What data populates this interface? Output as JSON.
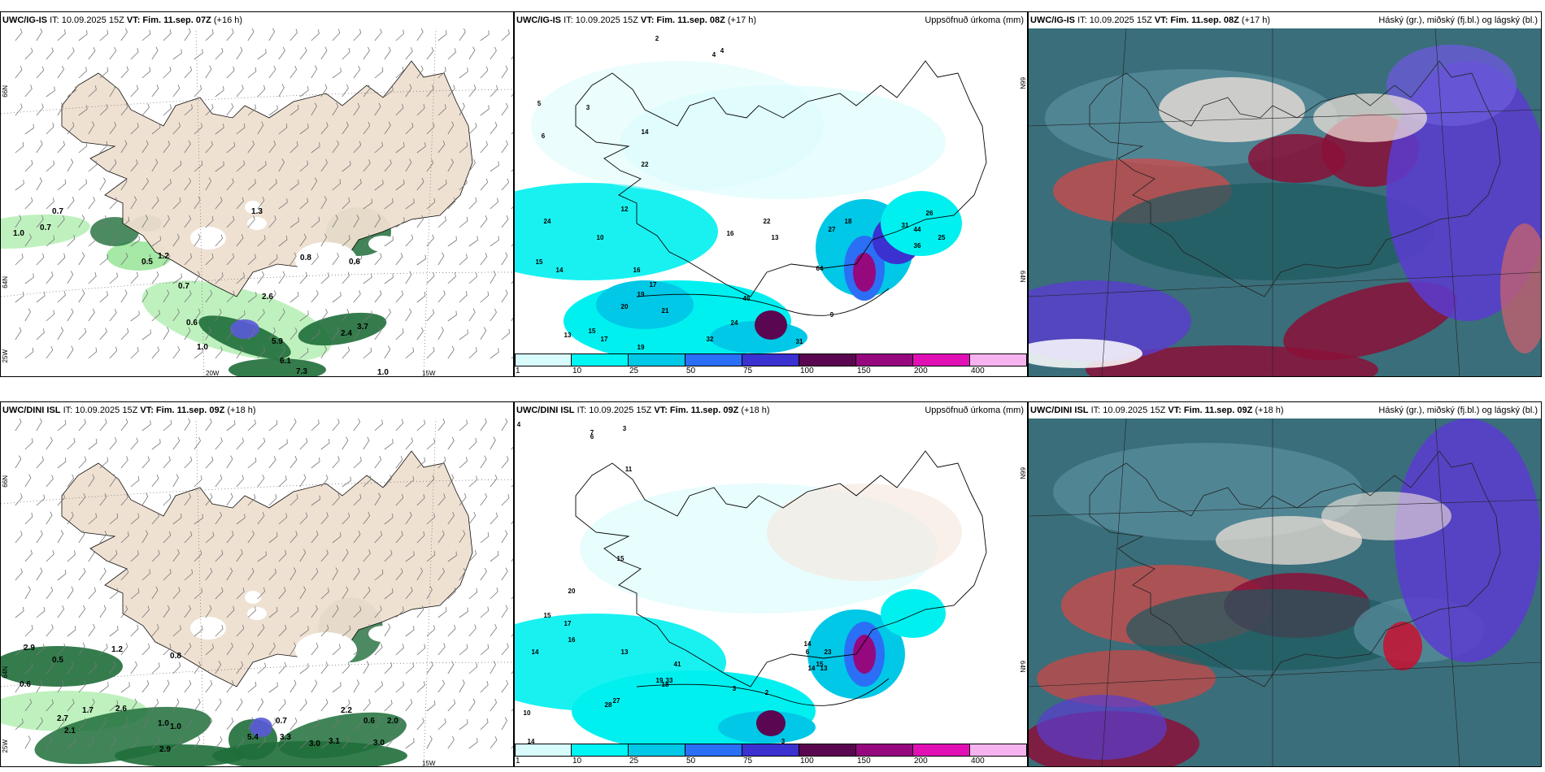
{
  "rows": [
    {
      "model": "UWC/IG-IS",
      "it": "IT: 10.09.2025 15Z",
      "vt_left": "VT: Fim. 11.sep. 07Z",
      "lead_left": "(+16 h)",
      "vt": "VT: Fim. 11.sep. 08Z",
      "lead": "(+17 h)",
      "precip_values": [
        "1.0",
        "0.7",
        "0.7",
        "0.5",
        "1.3",
        "1.2",
        "0.7",
        "0.6",
        "0.8",
        "0.6",
        "2.6",
        "3.7",
        "2.4",
        "5.9",
        "6.1",
        "7.3",
        "1.0",
        "1.0"
      ],
      "accum_values": [
        "2",
        "4",
        "4",
        "3",
        "5",
        "6",
        "22",
        "14",
        "12",
        "15",
        "14",
        "13",
        "24",
        "10",
        "16",
        "17",
        "21",
        "19",
        "20",
        "32",
        "24",
        "46",
        "31",
        "9",
        "64",
        "44",
        "26",
        "36",
        "25",
        "31",
        "27",
        "18",
        "22",
        "13",
        "16",
        "15",
        "17",
        "19"
      ]
    },
    {
      "model": "UWC/DINI ISL",
      "it": "IT: 10.09.2025 15Z",
      "vt_left": "VT: Fim. 11.sep. 09Z",
      "lead_left": "(+18 h)",
      "vt": "VT: Fim. 11.sep. 09Z",
      "lead": "(+18 h)",
      "precip_values": [
        "2.9",
        "0.5",
        "1.2",
        "0.8",
        "0.6",
        "2.7",
        "2.1",
        "1.7",
        "2.6",
        "1.0",
        "1.0",
        "5.4",
        "0.7",
        "2.2",
        "0.6",
        "2.0",
        "3.3",
        "3.0",
        "3.1",
        "3.0",
        "2.9"
      ],
      "accum_values": [
        "4",
        "7",
        "6",
        "3",
        "11",
        "15",
        "20",
        "16",
        "17",
        "14",
        "13",
        "15",
        "10",
        "28",
        "27",
        "18",
        "19",
        "41",
        "33",
        "15",
        "14",
        "23",
        "13",
        "14",
        "6",
        "3",
        "2",
        "3",
        "3",
        "14"
      ]
    }
  ],
  "precip_title": "Uppsöfnuð úrkoma (mm)",
  "cloud_title": "Háský (gr.), miðský (fj.bl.) og lágský (bl.)",
  "colorbar": {
    "labels": [
      "1",
      "10",
      "25",
      "50",
      "75",
      "100",
      "150",
      "200",
      "400"
    ],
    "colors": [
      "#d8fbfb",
      "#00f5f5",
      "#00c8e6",
      "#2a6ff5",
      "#3b30d0",
      "#5a0650",
      "#96087e",
      "#e010b4",
      "#f5b4f0"
    ]
  },
  "axis_labels": {
    "lat66": "66N",
    "lat64": "64N",
    "lat25": "25W",
    "lon20": "20W",
    "lon15": "15W"
  }
}
